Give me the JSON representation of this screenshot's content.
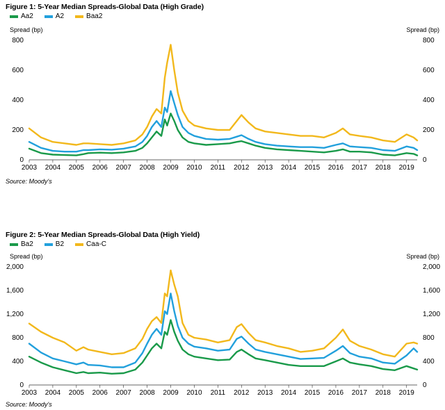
{
  "source": "Source: Moody's",
  "colors": {
    "green": "#1a9a4a",
    "blue": "#22a0dc",
    "gold": "#f2b81c"
  },
  "chart_data": [
    {
      "type": "line",
      "title": "Figure 1: 5-Year Median Spreads-Global Data (High Grade)",
      "ylabel": "Spread (bp)",
      "ylabel_right": "Spread (bp)",
      "ylim": [
        0,
        800
      ],
      "yticks": [
        0,
        200,
        400,
        600,
        800
      ],
      "ytick_labels": [
        "0",
        "200",
        "400",
        "600",
        "800"
      ],
      "xlim": [
        2003.0,
        2019.45
      ],
      "xticks": [
        2003,
        2004,
        2005,
        2006,
        2007,
        2008,
        2009,
        2010,
        2011,
        2012,
        2013,
        2014,
        2015,
        2016,
        2017,
        2018,
        2019
      ],
      "grid": false,
      "legend": "top-left",
      "source": "Source: Moody's",
      "series": [
        {
          "name": "Aa2",
          "color": "#1a9a4a",
          "x": [
            2003.0,
            2003.5,
            2004.0,
            2004.5,
            2005.0,
            2005.3,
            2005.5,
            2006.0,
            2006.5,
            2007.0,
            2007.5,
            2007.8,
            2008.0,
            2008.2,
            2008.4,
            2008.6,
            2008.75,
            2008.85,
            2009.0,
            2009.15,
            2009.3,
            2009.5,
            2009.75,
            2010.0,
            2010.5,
            2011.0,
            2011.5,
            2011.8,
            2012.0,
            2012.3,
            2012.6,
            2013.0,
            2013.5,
            2014.0,
            2014.5,
            2015.0,
            2015.5,
            2016.0,
            2016.3,
            2016.6,
            2017.0,
            2017.5,
            2018.0,
            2018.5,
            2019.0,
            2019.3,
            2019.45
          ],
          "values": [
            75,
            45,
            35,
            32,
            30,
            38,
            45,
            48,
            45,
            50,
            60,
            80,
            110,
            150,
            190,
            160,
            270,
            230,
            310,
            260,
            200,
            150,
            120,
            110,
            100,
            105,
            110,
            120,
            125,
            110,
            95,
            80,
            70,
            65,
            60,
            55,
            50,
            60,
            70,
            55,
            55,
            50,
            35,
            30,
            45,
            40,
            30
          ]
        },
        {
          "name": "A2",
          "color": "#22a0dc",
          "x": [
            2003.0,
            2003.5,
            2004.0,
            2004.5,
            2005.0,
            2005.3,
            2005.5,
            2006.0,
            2006.5,
            2007.0,
            2007.5,
            2007.8,
            2008.0,
            2008.2,
            2008.4,
            2008.6,
            2008.75,
            2008.85,
            2009.0,
            2009.15,
            2009.3,
            2009.5,
            2009.75,
            2010.0,
            2010.5,
            2011.0,
            2011.5,
            2011.8,
            2012.0,
            2012.3,
            2012.6,
            2013.0,
            2013.5,
            2014.0,
            2014.5,
            2015.0,
            2015.5,
            2016.0,
            2016.3,
            2016.6,
            2017.0,
            2017.5,
            2018.0,
            2018.5,
            2019.0,
            2019.3,
            2019.45
          ],
          "values": [
            120,
            80,
            60,
            55,
            55,
            65,
            65,
            70,
            68,
            75,
            90,
            120,
            160,
            220,
            260,
            220,
            350,
            320,
            460,
            380,
            300,
            220,
            180,
            160,
            140,
            135,
            140,
            155,
            165,
            140,
            120,
            105,
            95,
            90,
            85,
            85,
            80,
            100,
            110,
            90,
            85,
            80,
            65,
            60,
            90,
            80,
            65
          ]
        },
        {
          "name": "Baa2",
          "color": "#f2b81c",
          "x": [
            2003.0,
            2003.5,
            2004.0,
            2004.5,
            2005.0,
            2005.3,
            2005.5,
            2006.0,
            2006.5,
            2007.0,
            2007.5,
            2007.8,
            2008.0,
            2008.2,
            2008.4,
            2008.6,
            2008.75,
            2008.85,
            2009.0,
            2009.15,
            2009.3,
            2009.5,
            2009.75,
            2010.0,
            2010.5,
            2011.0,
            2011.5,
            2011.8,
            2012.0,
            2012.3,
            2012.6,
            2013.0,
            2013.5,
            2014.0,
            2014.5,
            2015.0,
            2015.5,
            2016.0,
            2016.3,
            2016.6,
            2017.0,
            2017.5,
            2018.0,
            2018.5,
            2019.0,
            2019.3,
            2019.45
          ],
          "values": [
            210,
            150,
            120,
            110,
            100,
            110,
            110,
            105,
            100,
            110,
            130,
            170,
            220,
            290,
            340,
            310,
            550,
            650,
            770,
            600,
            450,
            330,
            260,
            230,
            210,
            200,
            200,
            260,
            300,
            250,
            210,
            190,
            180,
            170,
            160,
            160,
            150,
            180,
            210,
            170,
            160,
            150,
            130,
            120,
            170,
            150,
            130
          ]
        }
      ]
    },
    {
      "type": "line",
      "title": "Figure 2: 5-Year Median Spreads-Global Data (High Yield)",
      "ylabel": "Spread (bp)",
      "ylabel_right": "Spread (bp)",
      "ylim": [
        0,
        2000
      ],
      "yticks": [
        0,
        400,
        800,
        1200,
        1600,
        2000
      ],
      "ytick_labels": [
        "0",
        "400",
        "800",
        "1,200",
        "1,600",
        "2,000"
      ],
      "xlim": [
        2003.0,
        2019.45
      ],
      "xticks": [
        2003,
        2004,
        2005,
        2006,
        2007,
        2008,
        2009,
        2010,
        2011,
        2012,
        2013,
        2014,
        2015,
        2016,
        2017,
        2018,
        2019
      ],
      "grid": false,
      "legend": "top-left",
      "source": "Source: Moody's",
      "series": [
        {
          "name": "Ba2",
          "color": "#1a9a4a",
          "x": [
            2003.0,
            2003.5,
            2004.0,
            2004.5,
            2005.0,
            2005.3,
            2005.5,
            2006.0,
            2006.5,
            2007.0,
            2007.5,
            2007.8,
            2008.0,
            2008.2,
            2008.4,
            2008.6,
            2008.75,
            2008.85,
            2009.0,
            2009.15,
            2009.3,
            2009.5,
            2009.75,
            2010.0,
            2010.5,
            2011.0,
            2011.5,
            2011.8,
            2012.0,
            2012.3,
            2012.6,
            2013.0,
            2013.5,
            2014.0,
            2014.5,
            2015.0,
            2015.5,
            2016.0,
            2016.3,
            2016.6,
            2017.0,
            2017.5,
            2018.0,
            2018.5,
            2019.0,
            2019.3,
            2019.45
          ],
          "values": [
            480,
            380,
            300,
            250,
            200,
            220,
            200,
            210,
            190,
            200,
            260,
            380,
            500,
            620,
            700,
            620,
            900,
            850,
            1100,
            900,
            750,
            600,
            520,
            480,
            450,
            420,
            430,
            560,
            600,
            520,
            450,
            420,
            380,
            340,
            320,
            320,
            320,
            400,
            450,
            380,
            350,
            320,
            270,
            250,
            320,
            280,
            260
          ]
        },
        {
          "name": "B2",
          "color": "#22a0dc",
          "x": [
            2003.0,
            2003.5,
            2004.0,
            2004.5,
            2005.0,
            2005.3,
            2005.5,
            2006.0,
            2006.5,
            2007.0,
            2007.5,
            2007.8,
            2008.0,
            2008.2,
            2008.4,
            2008.6,
            2008.75,
            2008.85,
            2009.0,
            2009.15,
            2009.3,
            2009.5,
            2009.75,
            2010.0,
            2010.5,
            2011.0,
            2011.5,
            2011.8,
            2012.0,
            2012.3,
            2012.6,
            2013.0,
            2013.5,
            2014.0,
            2014.5,
            2015.0,
            2015.5,
            2016.0,
            2016.3,
            2016.6,
            2017.0,
            2017.5,
            2018.0,
            2018.5,
            2019.0,
            2019.3,
            2019.45
          ],
          "values": [
            700,
            550,
            450,
            400,
            350,
            380,
            340,
            330,
            300,
            300,
            380,
            540,
            700,
            850,
            950,
            850,
            1250,
            1200,
            1550,
            1250,
            1000,
            800,
            700,
            650,
            620,
            580,
            600,
            780,
            820,
            700,
            600,
            560,
            520,
            480,
            440,
            450,
            460,
            580,
            660,
            540,
            480,
            450,
            380,
            360,
            500,
            620,
            560
          ]
        },
        {
          "name": "Caa-C",
          "color": "#f2b81c",
          "x": [
            2003.0,
            2003.5,
            2004.0,
            2004.5,
            2005.0,
            2005.3,
            2005.5,
            2006.0,
            2006.5,
            2007.0,
            2007.5,
            2007.8,
            2008.0,
            2008.2,
            2008.4,
            2008.6,
            2008.75,
            2008.85,
            2009.0,
            2009.15,
            2009.3,
            2009.5,
            2009.75,
            2010.0,
            2010.5,
            2011.0,
            2011.5,
            2011.8,
            2012.0,
            2012.3,
            2012.6,
            2013.0,
            2013.5,
            2014.0,
            2014.5,
            2015.0,
            2015.5,
            2016.0,
            2016.3,
            2016.6,
            2017.0,
            2017.5,
            2018.0,
            2018.5,
            2019.0,
            2019.3,
            2019.45
          ],
          "values": [
            1040,
            900,
            800,
            720,
            580,
            640,
            600,
            560,
            520,
            540,
            620,
            780,
            950,
            1080,
            1150,
            1050,
            1550,
            1500,
            1940,
            1700,
            1500,
            1050,
            850,
            800,
            770,
            720,
            760,
            980,
            1030,
            880,
            760,
            720,
            660,
            620,
            560,
            580,
            620,
            800,
            940,
            750,
            660,
            600,
            520,
            480,
            700,
            720,
            700
          ]
        }
      ]
    }
  ]
}
